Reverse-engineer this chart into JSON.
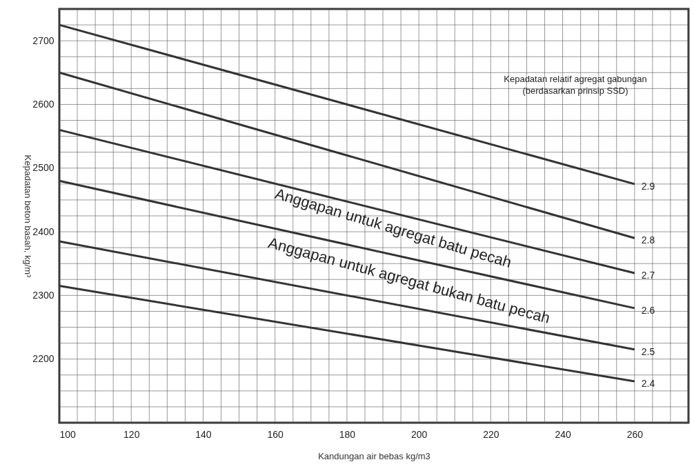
{
  "chart_data": {
    "type": "line",
    "xlabel": "Kandungan air bebas kg/m3",
    "ylabel": "Kepadatan beton basah, kg/m³",
    "legend_title": "Kepadatan relatif agregat gabungan\n(berdasarkan prinsip SSD)",
    "x": [
      100,
      260
    ],
    "series": [
      {
        "name": "2.9",
        "color": "#333333",
        "values": [
          2725,
          2475
        ]
      },
      {
        "name": "2.8",
        "color": "#333333",
        "values": [
          2650,
          2390
        ]
      },
      {
        "name": "2.7",
        "color": "#333333",
        "values": [
          2560,
          2335
        ]
      },
      {
        "name": "2.6",
        "color": "#333333",
        "values": [
          2480,
          2280
        ]
      },
      {
        "name": "2.5",
        "color": "#333333",
        "values": [
          2385,
          2215
        ]
      },
      {
        "name": "2.4",
        "color": "#333333",
        "values": [
          2315,
          2165
        ]
      }
    ],
    "annotations": [
      "Anggapan untuk agregat batu pecah",
      "Anggapan untuk agregat bukan batu pecah"
    ],
    "xlim": [
      100,
      275
    ],
    "ylim": [
      2100,
      2750
    ],
    "xticks": [
      100,
      {
        "value": 105,
        "label": null
      },
      {
        "value": 110,
        "label": null
      },
      {
        "value": 115,
        "label": null
      },
      120,
      {
        "value": 125,
        "label": null
      },
      {
        "value": 130,
        "label": null
      },
      {
        "value": 135,
        "label": null
      },
      140,
      {
        "value": 145,
        "label": null
      },
      {
        "value": 150,
        "label": null
      },
      {
        "value": 155,
        "label": null
      },
      160,
      {
        "value": 165,
        "label": null
      },
      {
        "value": 170,
        "label": null
      },
      {
        "value": 175,
        "label": null
      },
      180,
      {
        "value": 185,
        "label": null
      },
      {
        "value": 190,
        "label": null
      },
      {
        "value": 195,
        "label": null
      },
      200,
      {
        "value": 205,
        "label": null
      },
      {
        "value": 210,
        "label": null
      },
      {
        "value": 215,
        "label": null
      },
      220,
      {
        "value": 225,
        "label": null
      },
      {
        "value": 230,
        "label": null
      },
      {
        "value": 235,
        "label": null
      },
      240,
      {
        "value": 245,
        "label": null
      },
      {
        "value": 250,
        "label": null
      },
      {
        "value": 255,
        "label": null
      },
      260,
      {
        "value": 265,
        "label": null
      },
      {
        "value": 270,
        "label": null
      },
      {
        "value": 275,
        "label": null
      }
    ],
    "yticks": [
      {
        "value": 2100,
        "label": null
      },
      {
        "value": 2125,
        "label": null
      },
      {
        "value": 2150,
        "label": null
      },
      {
        "value": 2175,
        "label": null
      },
      2200,
      {
        "value": 2225,
        "label": null
      },
      {
        "value": 2250,
        "label": null
      },
      {
        "value": 2275,
        "label": null
      },
      2300,
      {
        "value": 2325,
        "label": null
      },
      {
        "value": 2350,
        "label": null
      },
      {
        "value": 2375,
        "label": null
      },
      2400,
      {
        "value": 2425,
        "label": null
      },
      {
        "value": 2450,
        "label": null
      },
      {
        "value": 2475,
        "label": null
      },
      2500,
      {
        "value": 2525,
        "label": null
      },
      {
        "value": 2550,
        "label": null
      },
      {
        "value": 2575,
        "label": null
      },
      2600,
      {
        "value": 2625,
        "label": null
      },
      {
        "value": 2650,
        "label": null
      },
      {
        "value": 2675,
        "label": null
      },
      2700,
      {
        "value": 2725,
        "label": null
      },
      {
        "value": 2750,
        "label": null
      }
    ],
    "grid": true,
    "marker": "none",
    "line_style": "solid"
  }
}
